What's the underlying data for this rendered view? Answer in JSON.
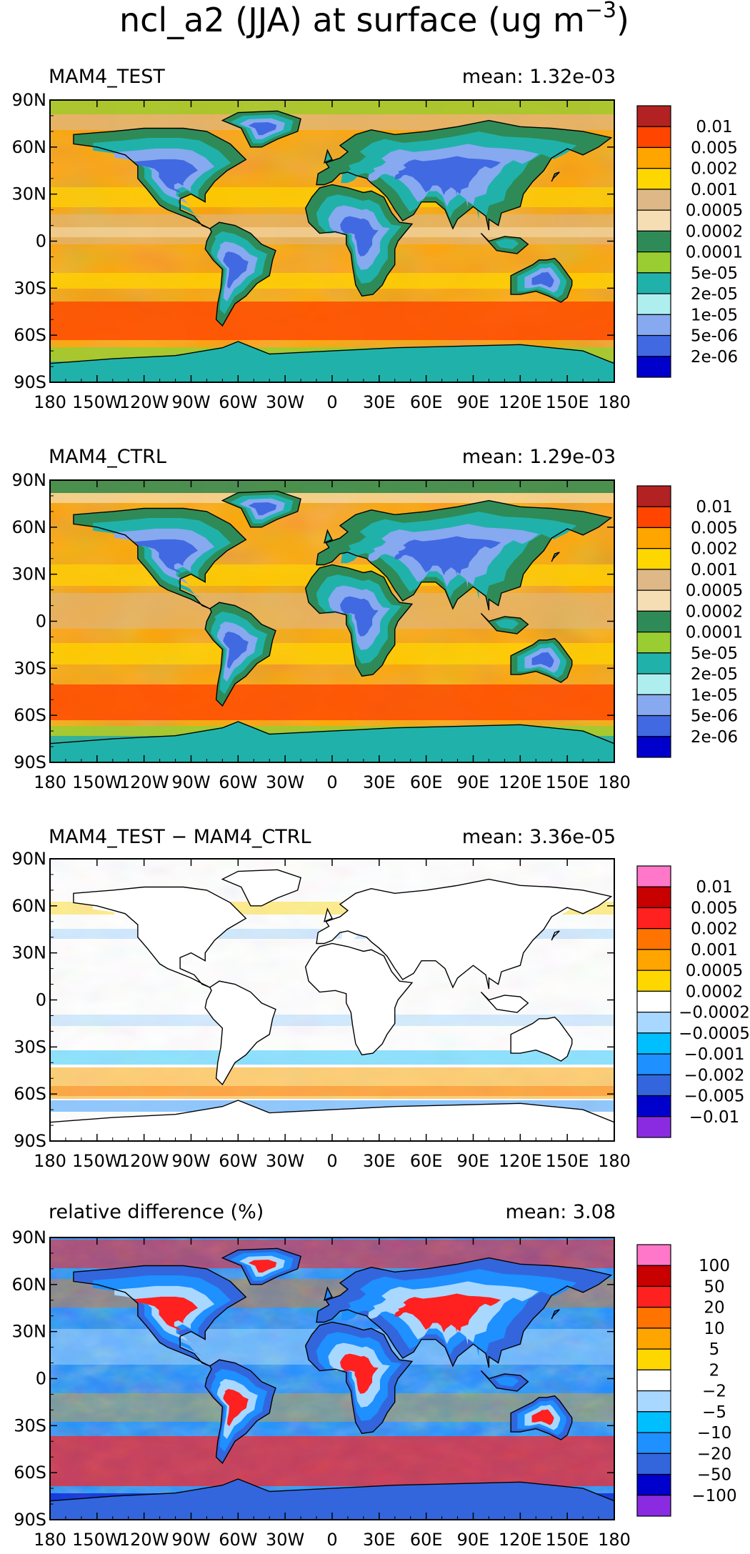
{
  "figure": {
    "title_main": "ncl_a2 (JJA) at surface (ug m",
    "title_exp": "−3",
    "title_close": ")"
  },
  "axes": {
    "lon_labels": [
      "180",
      "150W",
      "120W",
      "90W",
      "60W",
      "30W",
      "0",
      "30E",
      "60E",
      "90E",
      "120E",
      "150E",
      "180"
    ],
    "lat_labels": [
      "90N",
      "60N",
      "30N",
      "0",
      "30S",
      "60S",
      "90S"
    ]
  },
  "panels": [
    {
      "title": "MAM4_TEST",
      "mean_label": "mean:  1.32e-03",
      "legend_colors": [
        "#B22222",
        "#FF4500",
        "#FFA500",
        "#FFD700",
        "#DEB887",
        "#F5DEB3",
        "#2E8B57",
        "#9ACD32",
        "#20B2AA",
        "#AFEEEE",
        "#87A9F0",
        "#4169E1",
        "#0000CD"
      ],
      "legend_labels": [
        "0.01",
        "0.005",
        "0.002",
        "0.001",
        "0.0005",
        "0.0002",
        "0.0001",
        "5e-05",
        "2e-05",
        "1e-05",
        "5e-06",
        "2e-06"
      ]
    },
    {
      "title": "MAM4_CTRL",
      "mean_label": "mean:  1.29e-03",
      "legend_colors": [
        "#B22222",
        "#FF4500",
        "#FFA500",
        "#FFD700",
        "#DEB887",
        "#F5DEB3",
        "#2E8B57",
        "#9ACD32",
        "#20B2AA",
        "#AFEEEE",
        "#87A9F0",
        "#4169E1",
        "#0000CD"
      ],
      "legend_labels": [
        "0.01",
        "0.005",
        "0.002",
        "0.001",
        "0.0005",
        "0.0002",
        "0.0001",
        "5e-05",
        "2e-05",
        "1e-05",
        "5e-06",
        "2e-06"
      ]
    },
    {
      "title": "MAM4_TEST − MAM4_CTRL",
      "mean_label": "mean:  3.36e-05",
      "legend_colors": [
        "#FF77C8",
        "#C80000",
        "#FF2020",
        "#FF7400",
        "#FFA500",
        "#FFD700",
        "#FFFFFF",
        "#A8D8FF",
        "#00BFFF",
        "#1E90FF",
        "#3366DD",
        "#0000CD",
        "#8A2BE2"
      ],
      "legend_labels": [
        "0.01",
        "0.005",
        "0.002",
        "0.001",
        "0.0005",
        "0.0002",
        "−0.0002",
        "−0.0005",
        "−0.001",
        "−0.002",
        "−0.005",
        "−0.01"
      ]
    },
    {
      "title": "relative difference (%)",
      "mean_label": "mean:   3.08",
      "legend_colors": [
        "#FF77C8",
        "#C80000",
        "#FF2020",
        "#FF7400",
        "#FFA500",
        "#FFD700",
        "#FFFFFF",
        "#A8D8FF",
        "#00BFFF",
        "#1E90FF",
        "#3366DD",
        "#0000CD",
        "#8A2BE2"
      ],
      "legend_labels": [
        "100",
        "50",
        "20",
        "10",
        "5",
        "2",
        "−2",
        "−5",
        "−10",
        "−20",
        "−50",
        "−100"
      ]
    }
  ]
}
